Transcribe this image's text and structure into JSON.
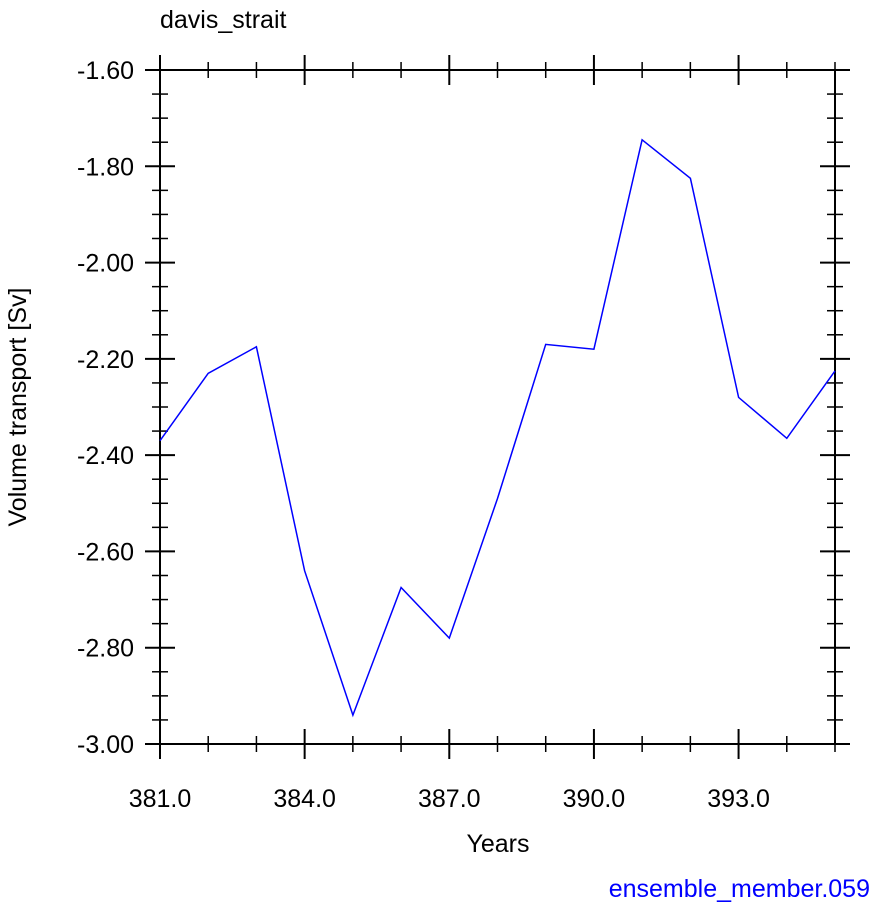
{
  "chart_data": {
    "type": "line",
    "title": "davis_strait",
    "xlabel": "Years",
    "ylabel": "Volume transport [Sv]",
    "footnote": "ensemble_member.059",
    "xlim": [
      381,
      395
    ],
    "ylim": [
      -3.0,
      -1.6
    ],
    "x_ticks": [
      381,
      384,
      387,
      390,
      393
    ],
    "x_tick_labels": [
      "381.0",
      "384.0",
      "387.0",
      "390.0",
      "393.0"
    ],
    "y_ticks": [
      -1.6,
      -1.8,
      -2.0,
      -2.2,
      -2.4,
      -2.6,
      -2.8,
      -3.0
    ],
    "y_tick_labels": [
      "-1.60",
      "-1.80",
      "-2.00",
      "-2.20",
      "-2.40",
      "-2.60",
      "-2.80",
      "-3.00"
    ],
    "grid": false,
    "series": [
      {
        "color": "#0000ff",
        "x": [
          381,
          382,
          383,
          384,
          385,
          386,
          387,
          388,
          389,
          390,
          391,
          392,
          393,
          394,
          395
        ],
        "y": [
          -2.37,
          -2.23,
          -2.175,
          -2.64,
          -2.94,
          -2.675,
          -2.78,
          -2.49,
          -2.17,
          -2.18,
          -1.745,
          -1.825,
          -2.28,
          -2.365,
          -2.225
        ]
      }
    ],
    "colors": {
      "axis": "#000000",
      "series": "#0000ff",
      "footnote": "#0000ff"
    }
  }
}
